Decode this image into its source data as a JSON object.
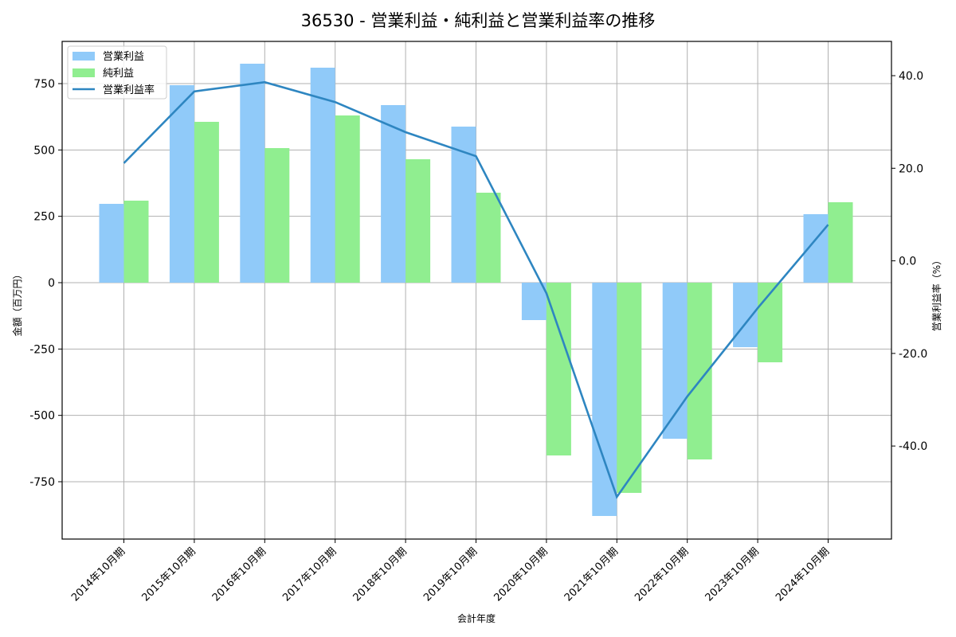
{
  "chart_data": {
    "type": "bar",
    "title": "36530 - 営業利益・純利益と営業利益率の推移",
    "xlabel": "会計年度",
    "ylabel": "金額（百万円）",
    "y2label": "営業利益率（%）",
    "categories": [
      "2014年10月期",
      "2015年10月期",
      "2016年10月期",
      "2017年10月期",
      "2018年10月期",
      "2019年10月期",
      "2020年10月期",
      "2021年10月期",
      "2022年10月期",
      "2023年10月期",
      "2024年10月期"
    ],
    "series": [
      {
        "name": "営業利益",
        "type": "bar",
        "axis": "left",
        "color": "#90CAF9",
        "values": [
          297,
          744,
          825,
          810,
          669,
          588,
          -141,
          -879,
          -588,
          -243,
          258
        ]
      },
      {
        "name": "純利益",
        "type": "bar",
        "axis": "left",
        "color": "#90EE90",
        "values": [
          309,
          606,
          507,
          630,
          465,
          339,
          -651,
          -792,
          -666,
          -300,
          303
        ]
      },
      {
        "name": "営業利益率",
        "type": "line",
        "axis": "right",
        "color": "#2E86C1",
        "values": [
          21.1,
          36.6,
          38.6,
          34.3,
          27.8,
          22.6,
          -7.0,
          -51.0,
          -29.3,
          -10.2,
          7.8
        ]
      }
    ],
    "ylim": [
      -966,
      909
    ],
    "y2lim": [
      -60.1,
      47.4
    ],
    "yticks": [
      -750,
      -500,
      -250,
      0,
      250,
      500,
      750
    ],
    "ytick_labels": [
      "-750",
      "-500",
      "-250",
      "0",
      "250",
      "500",
      "750"
    ],
    "y2ticks": [
      -40,
      -20,
      0,
      20,
      40
    ],
    "y2tick_labels": [
      "-40.0",
      "-20.0",
      "0.0",
      "20.0",
      "40.0"
    ],
    "grid": true,
    "legend_position": "upper left"
  }
}
